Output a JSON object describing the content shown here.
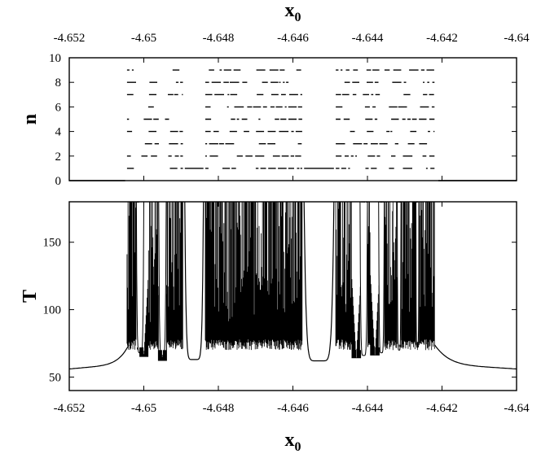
{
  "chart_data": [
    {
      "type": "scatter",
      "panel": "top",
      "xlabel": "x",
      "xlabel_sub": "0",
      "ylabel": "n",
      "xlim": [
        -4.652,
        -4.64
      ],
      "ylim": [
        0,
        10
      ],
      "x_ticks": [
        "-4.652",
        "-4.65",
        "-4.648",
        "-4.646",
        "-4.644",
        "-4.642",
        "-4.64"
      ],
      "y_ticks": [
        "0",
        "2",
        "4",
        "6",
        "8",
        "10"
      ],
      "grid": false,
      "legend": "none",
      "baseline_segments": [
        {
          "n": 0,
          "x": [
            -4.652,
            -4.6505
          ]
        },
        {
          "n": 1,
          "x": [
            -4.6489,
            -4.6484
          ]
        },
        {
          "n": 1,
          "x": [
            -4.6457,
            -4.6449
          ]
        },
        {
          "n": 0,
          "x": [
            -4.6421,
            -4.64
          ]
        }
      ],
      "chaotic_bands": [
        [
          -4.65045,
          -4.64895
        ],
        [
          -4.64835,
          -4.64575
        ],
        [
          -4.64485,
          -4.6422
        ]
      ],
      "band_n_levels": [
        1,
        2,
        3,
        4,
        5,
        6,
        7,
        8,
        9
      ],
      "band_gaps": [
        [
          -4.6502,
          -4.65
        ],
        [
          -4.6496,
          -4.6494
        ],
        [
          -4.6491,
          -4.649
        ],
        [
          -4.6479,
          -4.6478
        ],
        [
          -4.6474,
          -4.6473
        ],
        [
          -4.64715,
          -4.647
        ],
        [
          -4.6467,
          -4.6466
        ],
        [
          -4.6461,
          -4.64605
        ],
        [
          -4.6442,
          -4.6441
        ],
        [
          -4.6437,
          -4.6436
        ],
        [
          -4.6432,
          -4.6431
        ],
        [
          -4.6427,
          -4.64255
        ]
      ]
    },
    {
      "type": "line",
      "panel": "bottom",
      "xlabel": "x",
      "xlabel_sub": "0",
      "ylabel": "T",
      "xlim": [
        -4.652,
        -4.64
      ],
      "ylim": [
        40,
        180
      ],
      "x_ticks": [
        "-4.652",
        "-4.65",
        "-4.648",
        "-4.646",
        "-4.644",
        "-4.642",
        "-4.64"
      ],
      "y_ticks": [
        "50",
        "100",
        "150"
      ],
      "grid": false,
      "legend": "none",
      "series": [
        {
          "values_note_free": true,
          "envelope_x": [
            -4.652,
            -4.651,
            -4.6506,
            -4.6505,
            -4.6504
          ],
          "envelope_y": [
            56,
            58,
            65,
            70,
            180
          ]
        }
      ],
      "regular_windows": [
        {
          "x_left": -4.6489,
          "x_right": -4.6484,
          "min_T": 63
        },
        {
          "x_left": -4.6457,
          "x_right": -4.6449,
          "min_T": 62
        }
      ],
      "local_dips": [
        {
          "x": -4.65,
          "min_T": 65
        },
        {
          "x": -4.6495,
          "min_T": 62
        },
        {
          "x": -4.6443,
          "min_T": 64
        },
        {
          "x": -4.6438,
          "min_T": 66
        }
      ],
      "smooth_segments": [
        {
          "x": [
            -4.652,
            -4.6504
          ],
          "T": [
            56,
            70
          ]
        },
        {
          "x": [
            -4.6422,
            -4.64
          ],
          "T": [
            70,
            56
          ]
        }
      ],
      "chaotic_bands": [
        [
          -4.65045,
          -4.64895
        ],
        [
          -4.64835,
          -4.64575
        ],
        [
          -4.64485,
          -4.6422
        ]
      ],
      "band_floor_T": 70,
      "band_ceiling_T": 180,
      "central_feature": {
        "x": -4.6471,
        "T_range": [
          70,
          132
        ]
      }
    }
  ]
}
